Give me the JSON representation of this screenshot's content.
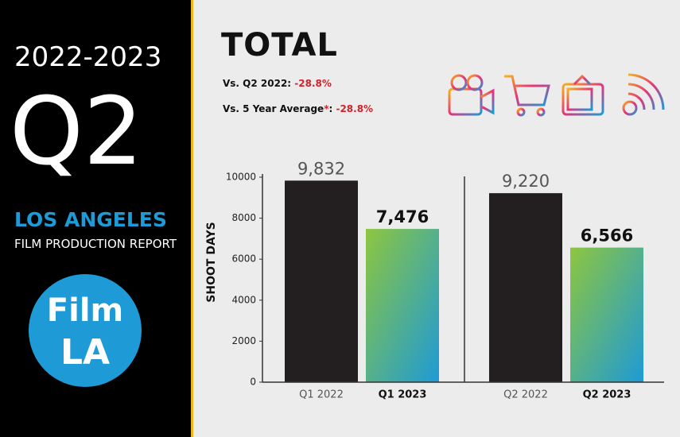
{
  "side": {
    "years": "2022-2023",
    "quarter": "Q2",
    "city": "LOS ANGELES",
    "report": "FILM PRODUCTION REPORT",
    "logo": [
      "Film",
      "LA"
    ]
  },
  "header": {
    "title": "TOTAL",
    "comparisons": [
      {
        "label": "Vs. Q2 2022:",
        "value": "-28.8%"
      },
      {
        "label": "Vs. 5 Year Average",
        "note": "*",
        "sep": ":",
        "value": "-28.8%"
      }
    ]
  },
  "chart_data": {
    "type": "bar",
    "y_label": "SHOOT DAYS",
    "categories": [
      "Q1 2022",
      "Q1 2023",
      "Q2 2022",
      "Q2 2023"
    ],
    "values": [
      9832,
      7476,
      9220,
      6566
    ],
    "value_labels": [
      "9,832",
      "7,476",
      "9,220",
      "6,566"
    ],
    "bar_fills": [
      "#231f20",
      [
        "#8dc63f",
        "#1e9ad6"
      ],
      "#231f20",
      [
        "#8dc63f",
        "#1e9ad6"
      ]
    ],
    "bold": [
      false,
      true,
      false,
      true
    ],
    "ylim": [
      0,
      10000
    ],
    "yticks": [
      0,
      2000,
      4000,
      6000,
      8000,
      10000
    ]
  }
}
